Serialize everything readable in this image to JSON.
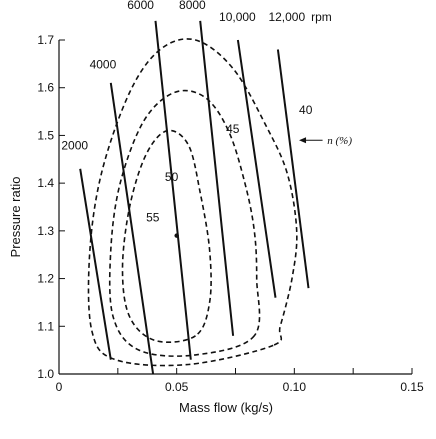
{
  "chart_data": {
    "type": "line",
    "title": "",
    "xlabel": "Mass flow (kg/s)",
    "ylabel": "Pressure ratio",
    "xlim": [
      0,
      0.15
    ],
    "ylim": [
      1.0,
      1.7
    ],
    "x_ticks": [
      {
        "value": 0,
        "label": "0"
      },
      {
        "value": 0.05,
        "label": "0.05"
      },
      {
        "value": 0.1,
        "label": "0.10"
      },
      {
        "value": 0.15,
        "label": "0.15"
      }
    ],
    "y_ticks": [
      {
        "value": 1.0,
        "label": "1.0"
      },
      {
        "value": 1.1,
        "label": "1.1"
      },
      {
        "value": 1.2,
        "label": "1.2"
      },
      {
        "value": 1.3,
        "label": "1.3"
      },
      {
        "value": 1.4,
        "label": "1.4"
      },
      {
        "value": 1.5,
        "label": "1.5"
      },
      {
        "value": 1.6,
        "label": "1.6"
      },
      {
        "value": 1.7,
        "label": "1.7"
      }
    ],
    "x_minor_step": 0.025,
    "grid": false,
    "speed_unit_label": "rpm",
    "speed_lines": [
      {
        "label": "2000",
        "label_at": [
          0.001,
          1.47
        ],
        "points": [
          [
            0.009,
            1.43
          ],
          [
            0.022,
            1.03
          ]
        ]
      },
      {
        "label": "4000",
        "label_at": [
          0.013,
          1.64
        ],
        "points": [
          [
            0.022,
            1.61
          ],
          [
            0.04,
            1.0
          ]
        ]
      },
      {
        "label": "6000",
        "label_at": [
          0.029,
          1.765
        ],
        "points": [
          [
            0.041,
            1.74
          ],
          [
            0.056,
            1.03
          ]
        ]
      },
      {
        "label": "8000",
        "label_at": [
          0.051,
          1.765
        ],
        "points": [
          [
            0.06,
            1.74
          ],
          [
            0.074,
            1.08
          ]
        ]
      },
      {
        "label": "10,000",
        "label_at": [
          0.068,
          1.74
        ],
        "points": [
          [
            0.076,
            1.7
          ],
          [
            0.092,
            1.16
          ]
        ]
      },
      {
        "label": "12,000",
        "label_at": [
          0.089,
          1.74
        ],
        "points": [
          [
            0.093,
            1.68
          ],
          [
            0.106,
            1.18
          ]
        ]
      }
    ],
    "efficiency_unit_label": "n (%)",
    "efficiency_unit_label_at": [
      0.114,
      1.49
    ],
    "efficiency_arrow": {
      "from": [
        0.112,
        1.49
      ],
      "to": [
        0.102,
        1.49
      ]
    },
    "efficiency_contours": [
      {
        "label": "40",
        "label_at": [
          0.102,
          1.545
        ],
        "points": [
          [
            0.091,
            1.06
          ],
          [
            0.055,
            1.02
          ],
          [
            0.024,
            1.03
          ],
          [
            0.014,
            1.09
          ],
          [
            0.013,
            1.25
          ],
          [
            0.018,
            1.42
          ],
          [
            0.03,
            1.59
          ],
          [
            0.043,
            1.68
          ],
          [
            0.058,
            1.7
          ],
          [
            0.074,
            1.64
          ],
          [
            0.088,
            1.52
          ],
          [
            0.097,
            1.42
          ],
          [
            0.101,
            1.3
          ],
          [
            0.099,
            1.2
          ],
          [
            0.094,
            1.1
          ],
          [
            0.091,
            1.06
          ]
        ]
      },
      {
        "label": "45",
        "label_at": [
          0.071,
          1.505
        ],
        "points": [
          [
            0.083,
            1.08
          ],
          [
            0.058,
            1.04
          ],
          [
            0.034,
            1.05
          ],
          [
            0.023,
            1.12
          ],
          [
            0.022,
            1.26
          ],
          [
            0.026,
            1.4
          ],
          [
            0.036,
            1.53
          ],
          [
            0.049,
            1.59
          ],
          [
            0.062,
            1.58
          ],
          [
            0.072,
            1.51
          ],
          [
            0.079,
            1.4
          ],
          [
            0.083,
            1.3
          ],
          [
            0.084,
            1.2
          ],
          [
            0.083,
            1.08
          ]
        ]
      },
      {
        "label": "50",
        "label_at": [
          0.045,
          1.405
        ],
        "points": [
          [
            0.058,
            1.08
          ],
          [
            0.041,
            1.07
          ],
          [
            0.03,
            1.12
          ],
          [
            0.027,
            1.22
          ],
          [
            0.03,
            1.35
          ],
          [
            0.037,
            1.46
          ],
          [
            0.046,
            1.51
          ],
          [
            0.055,
            1.48
          ],
          [
            0.06,
            1.38
          ],
          [
            0.064,
            1.26
          ],
          [
            0.064,
            1.15
          ],
          [
            0.058,
            1.08
          ]
        ]
      },
      {
        "label": "55",
        "label_at": [
          0.037,
          1.32
        ],
        "points": []
      }
    ],
    "peak_point": {
      "x": 0.05,
      "y": 1.29
    }
  }
}
